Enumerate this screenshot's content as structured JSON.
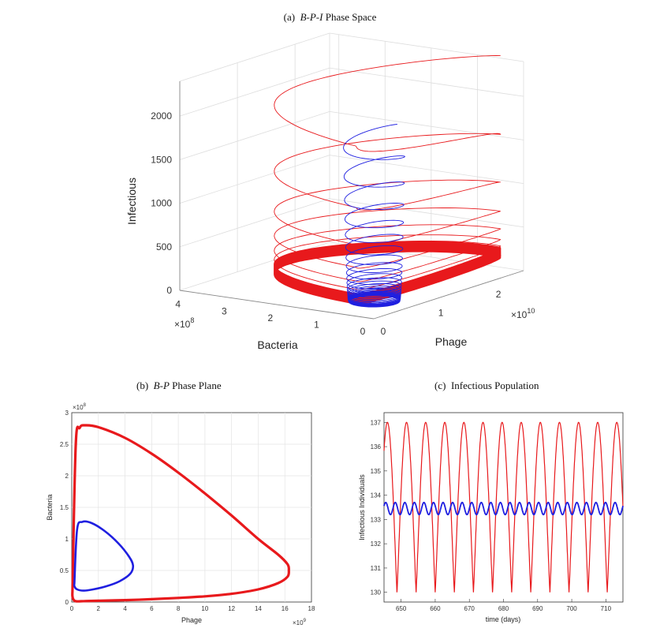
{
  "chart_data": [
    {
      "type": "line3d",
      "caption_prefix": "(a)",
      "caption_italic": "B-P-I",
      "caption_rest": "Phase Space",
      "xlabel": "Phage",
      "ylabel": "Bacteria",
      "zlabel": "Infectious",
      "x_exponent": "×10",
      "x_exponent_power": "10",
      "y_exponent": "×10",
      "y_exponent_power": "8",
      "xticks": [
        "0",
        "1",
        "2"
      ],
      "yticks": [
        "0",
        "1",
        "2",
        "3",
        "4"
      ],
      "zticks": [
        "0",
        "500",
        "1000",
        "1500",
        "2000"
      ],
      "xlim": [
        0,
        2.6
      ],
      "ylim": [
        0,
        4.2
      ],
      "zlim": [
        0,
        2400
      ],
      "colors": {
        "series1": "#e8191c",
        "series2": "#1f1fe0"
      }
    },
    {
      "type": "line",
      "caption_prefix": "(b)",
      "caption_italic": "B-P",
      "caption_rest": "Phase Plane",
      "xlabel": "Phage",
      "ylabel": "Bacteria",
      "x_exponent": "×10",
      "x_exponent_power": "9",
      "y_exponent": "×10",
      "y_exponent_power": "8",
      "xticks": [
        "0",
        "2",
        "4",
        "6",
        "8",
        "10",
        "12",
        "14",
        "16",
        "18"
      ],
      "yticks": [
        "0",
        "0.5",
        "1",
        "1.5",
        "2",
        "2.5",
        "3"
      ],
      "xlim": [
        0,
        18
      ],
      "ylim": [
        0,
        3
      ],
      "grid": true,
      "series": [
        {
          "color": "#e8191c",
          "x": [
            0.05,
            0.3,
            0.6,
            1,
            2,
            4,
            6,
            8,
            10,
            12,
            14,
            15.5,
            16.2,
            16.3,
            16.2,
            15.5,
            14,
            12,
            10,
            8,
            6,
            4,
            2,
            1,
            0.3,
            0.1,
            0.05,
            0.05
          ],
          "y": [
            0.15,
            2.5,
            2.76,
            2.8,
            2.77,
            2.6,
            2.35,
            2.05,
            1.72,
            1.37,
            1.0,
            0.75,
            0.6,
            0.5,
            0.4,
            0.3,
            0.2,
            0.13,
            0.09,
            0.065,
            0.045,
            0.03,
            0.02,
            0.015,
            0.012,
            0.05,
            0.1,
            0.15
          ]
        },
        {
          "color": "#1f1fe0",
          "x": [
            0.2,
            0.4,
            0.8,
            1.5,
            2.5,
            3.5,
            4.3,
            4.6,
            4.4,
            3.6,
            2.6,
            1.6,
            0.9,
            0.4,
            0.2,
            0.2
          ],
          "y": [
            0.3,
            1.15,
            1.27,
            1.25,
            1.12,
            0.93,
            0.72,
            0.58,
            0.45,
            0.33,
            0.25,
            0.2,
            0.18,
            0.2,
            0.25,
            0.3
          ]
        }
      ]
    },
    {
      "type": "line",
      "caption_prefix": "(c)",
      "caption_italic": "",
      "caption_rest": "Infectious Population",
      "xlabel": "time (days)",
      "ylabel": "Infectious Individuals",
      "xticks": [
        "650",
        "660",
        "670",
        "680",
        "690",
        "700",
        "710"
      ],
      "yticks": [
        "130",
        "131",
        "132",
        "133",
        "134",
        "135",
        "136",
        "137"
      ],
      "xlim": [
        645,
        715
      ],
      "ylim": [
        129.6,
        137.4
      ],
      "series": [
        {
          "color": "#e8191c",
          "period": 5.6,
          "phase_peak": 646.0,
          "min": 130.0,
          "max": 137.0,
          "x_start": 645,
          "x_end": 715
        },
        {
          "color": "#1f1fe0",
          "period": 2.8,
          "phase_peak": 645.5,
          "min": 133.2,
          "max": 133.7,
          "x_start": 645,
          "x_end": 715
        }
      ]
    }
  ]
}
